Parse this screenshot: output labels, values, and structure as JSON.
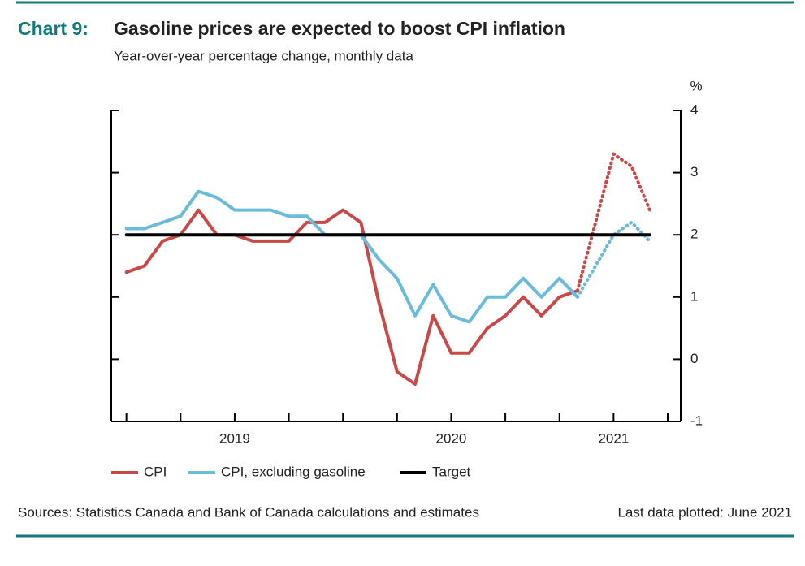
{
  "chart_data": {
    "type": "line",
    "label": "Chart 9:",
    "title": "Gasoline prices are expected to boost CPI inflation",
    "subtitle": "Year-over-year percentage change, monthly data",
    "y_unit": "%",
    "source": "Sources: Statistics Canada and Bank of Canada calculations and estimates",
    "note": "Last data plotted: June 2021",
    "x": [
      2019.0,
      2019.083,
      2019.167,
      2019.25,
      2019.333,
      2019.417,
      2019.5,
      2019.583,
      2019.667,
      2019.75,
      2019.833,
      2019.917,
      2020.0,
      2020.083,
      2020.167,
      2020.25,
      2020.333,
      2020.417,
      2020.5,
      2020.583,
      2020.667,
      2020.75,
      2020.833,
      2020.917,
      2021.0,
      2021.083,
      2021.167,
      2021.25,
      2021.333,
      2021.417
    ],
    "series": [
      {
        "name": "CPI",
        "color": "#c84a48",
        "projected_from": 25,
        "values": [
          1.4,
          1.5,
          1.9,
          2.0,
          2.4,
          2.0,
          2.0,
          1.9,
          1.9,
          1.9,
          2.2,
          2.2,
          2.4,
          2.2,
          0.9,
          -0.2,
          -0.4,
          0.7,
          0.1,
          0.1,
          0.5,
          0.7,
          1.0,
          0.7,
          1.0,
          1.1,
          2.2,
          3.3,
          3.1,
          2.4
        ]
      },
      {
        "name": "CPI, excluding gasoline",
        "color": "#6bbbdc",
        "projected_from": 25,
        "values": [
          2.1,
          2.1,
          2.2,
          2.3,
          2.7,
          2.6,
          2.4,
          2.4,
          2.4,
          2.3,
          2.3,
          2.0,
          2.0,
          2.0,
          1.6,
          1.3,
          0.7,
          1.2,
          0.7,
          0.6,
          1.0,
          1.0,
          1.3,
          1.0,
          1.3,
          1.0,
          1.5,
          2.0,
          2.2,
          1.9
        ]
      },
      {
        "name": "Target",
        "color": "#000000",
        "values": [
          2,
          2,
          2,
          2,
          2,
          2,
          2,
          2,
          2,
          2,
          2,
          2,
          2,
          2,
          2,
          2,
          2,
          2,
          2,
          2,
          2,
          2,
          2,
          2,
          2,
          2,
          2,
          2,
          2,
          2
        ]
      }
    ],
    "xlim": [
      2018.93,
      2021.56
    ],
    "xticks": [
      {
        "value": 2019.5,
        "label": "2019"
      },
      {
        "value": 2020.5,
        "label": "2020"
      },
      {
        "value": 2021.25,
        "label": "2021"
      }
    ],
    "minor_xticks": [
      2019.0,
      2019.25,
      2019.5,
      2019.75,
      2020.0,
      2020.25,
      2020.5,
      2020.75,
      2021.0,
      2021.25,
      2021.5
    ],
    "ylim": [
      -1,
      4
    ],
    "yticks": [
      -1,
      0,
      1,
      2,
      3,
      4
    ],
    "grid": false
  }
}
